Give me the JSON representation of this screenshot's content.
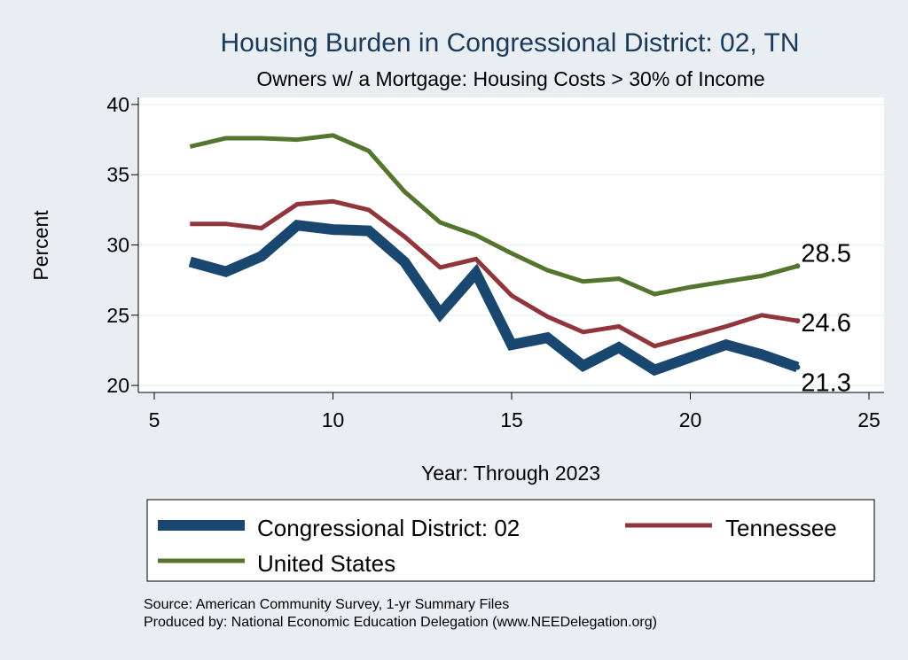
{
  "chart_data": {
    "type": "line",
    "title": "Housing Burden in Congressional District:  02, TN",
    "subtitle": "Owners w/ a Mortgage: Housing Costs > 30% of Income",
    "xlabel": "Year: Through 2023",
    "ylabel": "Percent",
    "xlim": [
      5,
      25
    ],
    "ylim": [
      19.5,
      40.5
    ],
    "xticks": [
      5,
      10,
      15,
      20,
      25
    ],
    "yticks": [
      20,
      25,
      30,
      35,
      40
    ],
    "grid": "horizontal",
    "legend_position": "bottom",
    "series": [
      {
        "name": "Congressional District:  02",
        "color": "#1a476f",
        "end_label": "21.3",
        "x": [
          6,
          7,
          8,
          9,
          10,
          11,
          12,
          13,
          14,
          15,
          16,
          17,
          18,
          19,
          20,
          21,
          22,
          23
        ],
        "y": [
          28.8,
          28.1,
          29.2,
          31.4,
          31.1,
          31.0,
          28.8,
          25.1,
          28.0,
          22.9,
          23.4,
          21.4,
          22.7,
          21.1,
          22.0,
          22.9,
          22.2,
          21.3
        ]
      },
      {
        "name": "Tennessee",
        "color": "#90353b",
        "end_label": "24.6",
        "x": [
          6,
          7,
          8,
          9,
          10,
          11,
          12,
          13,
          14,
          15,
          16,
          17,
          18,
          19,
          20,
          21,
          22,
          23
        ],
        "y": [
          31.5,
          31.5,
          31.2,
          32.9,
          33.1,
          32.5,
          30.6,
          28.4,
          29.0,
          26.4,
          24.9,
          23.8,
          24.2,
          22.8,
          23.5,
          24.2,
          25.0,
          24.6
        ]
      },
      {
        "name": "United States",
        "color": "#55752f",
        "end_label": "28.5",
        "x": [
          6,
          7,
          8,
          9,
          10,
          11,
          12,
          13,
          14,
          15,
          16,
          17,
          18,
          19,
          20,
          21,
          22,
          23
        ],
        "y": [
          37.0,
          37.6,
          37.6,
          37.5,
          37.8,
          36.7,
          33.8,
          31.6,
          30.7,
          29.4,
          28.2,
          27.4,
          27.6,
          26.5,
          27.0,
          27.4,
          27.8,
          28.5
        ]
      }
    ],
    "notes": [
      "Source: American Community Survey, 1-yr Summary Files",
      "Produced by: National Economic Education Delegation (www.NEEDelegation.org)"
    ]
  }
}
